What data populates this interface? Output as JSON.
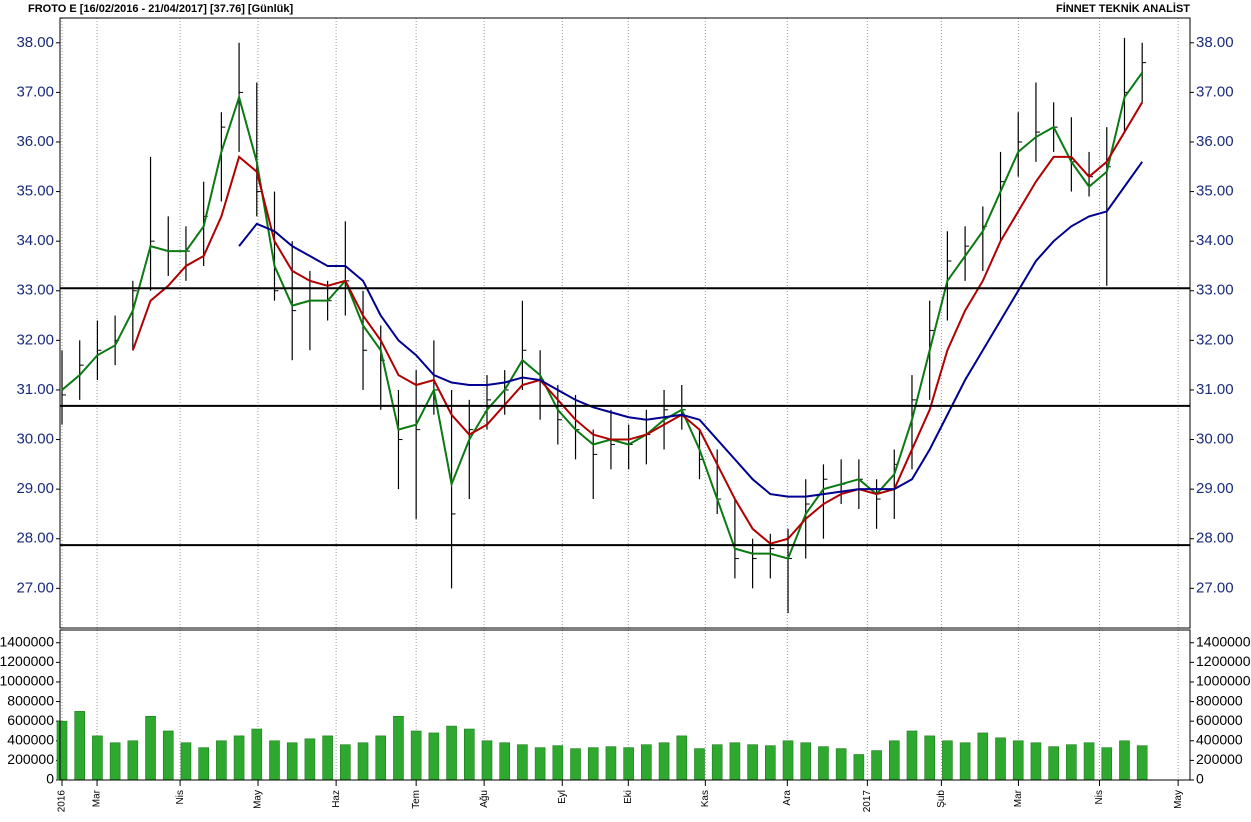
{
  "header": {
    "left": "FROTO E  [16/02/2016 - 21/04/2017]  [37.76]  [Günlük]",
    "right": "FİNNET TEKNİK ANALİST"
  },
  "chart_data": [
    {
      "type": "ohlc",
      "x": [
        0,
        1,
        2,
        3,
        4,
        5,
        6,
        7,
        8,
        9,
        10,
        11,
        12,
        13,
        14,
        15,
        16,
        17,
        18,
        19,
        20,
        21,
        22,
        23,
        24,
        25,
        26,
        27,
        28,
        29,
        30,
        31,
        32,
        33,
        34,
        35,
        36,
        37,
        38,
        39,
        40,
        41,
        42,
        43,
        44,
        45,
        46,
        47,
        48,
        49,
        50,
        51,
        52,
        53,
        54,
        55,
        56,
        57,
        58,
        59,
        60,
        61
      ],
      "high": [
        31.8,
        32.0,
        32.4,
        32.5,
        33.2,
        35.7,
        34.5,
        34.3,
        35.2,
        36.6,
        38.0,
        37.2,
        35.0,
        34.0,
        33.4,
        33.2,
        34.4,
        33.0,
        32.3,
        31.0,
        31.4,
        32.0,
        31.0,
        30.8,
        31.3,
        31.4,
        32.8,
        31.8,
        31.1,
        30.9,
        30.2,
        30.6,
        30.3,
        30.6,
        31.0,
        31.1,
        30.2,
        29.8,
        28.8,
        28.0,
        28.1,
        28.2,
        29.2,
        29.5,
        29.6,
        29.6,
        29.2,
        29.8,
        31.3,
        32.8,
        34.2,
        34.3,
        34.7,
        35.8,
        36.6,
        37.2,
        36.8,
        36.5,
        35.8,
        36.3,
        38.1,
        38.0
      ],
      "low": [
        30.3,
        30.8,
        31.2,
        31.5,
        31.8,
        33.0,
        33.3,
        33.2,
        33.5,
        34.8,
        35.8,
        34.5,
        32.8,
        31.6,
        31.8,
        32.4,
        32.5,
        31.0,
        30.6,
        29.0,
        28.4,
        30.5,
        27.0,
        28.8,
        30.2,
        30.5,
        31.0,
        30.4,
        29.9,
        29.6,
        28.8,
        29.4,
        29.4,
        29.5,
        29.8,
        30.2,
        29.2,
        28.5,
        27.2,
        27.0,
        27.2,
        26.5,
        27.6,
        28.0,
        28.7,
        28.6,
        28.2,
        28.4,
        29.4,
        30.8,
        32.4,
        33.2,
        33.4,
        34.0,
        35.3,
        35.6,
        35.8,
        35.0,
        34.9,
        33.1,
        36.2,
        36.8
      ],
      "close": [
        30.9,
        31.5,
        31.8,
        32.0,
        33.0,
        34.0,
        33.8,
        33.8,
        34.5,
        36.3,
        37.0,
        35.0,
        33.0,
        32.6,
        32.8,
        32.8,
        33.2,
        31.8,
        31.6,
        30.0,
        30.2,
        31.0,
        28.5,
        30.2,
        30.8,
        31.0,
        31.8,
        31.2,
        30.4,
        30.2,
        29.7,
        29.9,
        29.9,
        30.1,
        30.6,
        30.6,
        29.6,
        28.8,
        27.6,
        27.6,
        27.8,
        27.6,
        28.7,
        29.2,
        29.1,
        29.2,
        28.8,
        29.5,
        30.8,
        32.2,
        33.6,
        33.9,
        34.3,
        35.2,
        36.0,
        36.2,
        36.3,
        35.6,
        35.3,
        35.5,
        37.0,
        37.6
      ],
      "color": "#000000",
      "series": [
        {
          "color": "#0b7a12",
          "values": [
            31.0,
            31.3,
            31.7,
            31.9,
            32.6,
            33.9,
            33.8,
            33.8,
            34.3,
            35.8,
            36.9,
            35.6,
            33.5,
            32.7,
            32.8,
            32.8,
            33.2,
            32.3,
            31.8,
            30.2,
            30.3,
            31.0,
            29.1,
            30.0,
            30.6,
            31.0,
            31.6,
            31.3,
            30.6,
            30.2,
            29.9,
            30.0,
            29.9,
            30.1,
            30.4,
            30.6,
            29.8,
            28.8,
            27.8,
            27.7,
            27.7,
            27.6,
            28.5,
            29.0,
            29.1,
            29.2,
            28.9,
            29.3,
            30.4,
            31.8,
            33.2,
            33.7,
            34.2,
            35.0,
            35.8,
            36.1,
            36.3,
            35.6,
            35.1,
            35.4,
            36.9,
            37.4
          ]
        },
        {
          "color": "#b00000",
          "values": [
            null,
            null,
            null,
            null,
            31.8,
            32.8,
            33.1,
            33.5,
            33.7,
            34.5,
            35.7,
            35.4,
            34.0,
            33.4,
            33.2,
            33.1,
            33.2,
            32.5,
            32.0,
            31.3,
            31.1,
            31.2,
            30.5,
            30.1,
            30.3,
            30.7,
            31.1,
            31.2,
            30.8,
            30.4,
            30.1,
            30.0,
            30.0,
            30.1,
            30.3,
            30.5,
            30.2,
            29.5,
            28.8,
            28.2,
            27.9,
            28.0,
            28.4,
            28.7,
            28.9,
            29.0,
            28.9,
            29.0,
            29.8,
            30.6,
            31.8,
            32.6,
            33.2,
            34.0,
            34.6,
            35.2,
            35.7,
            35.7,
            35.3,
            35.6,
            36.2,
            36.8
          ]
        },
        {
          "color": "#000090",
          "values": [
            null,
            null,
            null,
            null,
            null,
            null,
            null,
            null,
            null,
            null,
            33.9,
            34.35,
            34.2,
            33.9,
            33.7,
            33.5,
            33.5,
            33.2,
            32.5,
            32.0,
            31.7,
            31.3,
            31.15,
            31.1,
            31.1,
            31.15,
            31.25,
            31.2,
            31.0,
            30.8,
            30.65,
            30.55,
            30.45,
            30.4,
            30.45,
            30.5,
            30.4,
            30.0,
            29.6,
            29.2,
            28.9,
            28.85,
            28.85,
            28.9,
            28.95,
            29.0,
            29.0,
            29.0,
            29.2,
            29.8,
            30.5,
            31.2,
            31.8,
            32.4,
            33.0,
            33.6,
            34.0,
            34.3,
            34.5,
            34.6,
            35.1,
            35.6
          ]
        }
      ],
      "hlines": [
        33.05,
        30.68,
        27.87
      ],
      "ylim": [
        26.2,
        38.5
      ],
      "yticks": [
        {
          "value": 27,
          "label": "27.00"
        },
        {
          "value": 28,
          "label": "28.00"
        },
        {
          "value": 29,
          "label": "29.00"
        },
        {
          "value": 30,
          "label": "30.00"
        },
        {
          "value": 31,
          "label": "31.00"
        },
        {
          "value": 32,
          "label": "32.00"
        },
        {
          "value": 33,
          "label": "33.00"
        },
        {
          "value": 34,
          "label": "34.00"
        },
        {
          "value": 35,
          "label": "35.00"
        },
        {
          "value": 36,
          "label": "36.00"
        },
        {
          "value": 37,
          "label": "37.00"
        },
        {
          "value": 38,
          "label": "38.00"
        }
      ],
      "grid": true
    },
    {
      "type": "bar",
      "values": [
        600000,
        700000,
        450000,
        380000,
        400000,
        650000,
        500000,
        380000,
        330000,
        400000,
        450000,
        520000,
        400000,
        380000,
        420000,
        450000,
        360000,
        380000,
        450000,
        650000,
        500000,
        480000,
        550000,
        520000,
        400000,
        380000,
        360000,
        330000,
        350000,
        320000,
        330000,
        340000,
        330000,
        360000,
        380000,
        450000,
        320000,
        360000,
        380000,
        360000,
        350000,
        400000,
        380000,
        340000,
        320000,
        260000,
        300000,
        400000,
        500000,
        450000,
        400000,
        380000,
        480000,
        430000,
        400000,
        380000,
        340000,
        360000,
        380000,
        330000,
        400000,
        350000
      ],
      "color": "#2ea82e",
      "ylim": [
        0,
        1530000
      ],
      "yticks": [
        0,
        200000,
        400000,
        600000,
        800000,
        1000000,
        1200000,
        1400000
      ],
      "xlim": [
        0,
        63.7
      ],
      "xticks": [
        {
          "value": 0,
          "label": "2016"
        },
        {
          "value": 1.98,
          "label": "Mar"
        },
        {
          "value": 6.67,
          "label": "Nis"
        },
        {
          "value": 11.07,
          "label": "May"
        },
        {
          "value": 15.48,
          "label": "Haz"
        },
        {
          "value": 20.0,
          "label": "Tem"
        },
        {
          "value": 23.84,
          "label": "Ağu"
        },
        {
          "value": 28.25,
          "label": "Eyl"
        },
        {
          "value": 31.98,
          "label": "Eki"
        },
        {
          "value": 36.33,
          "label": "Kas"
        },
        {
          "value": 40.96,
          "label": "Ara"
        },
        {
          "value": 45.48,
          "label": "2017"
        },
        {
          "value": 49.66,
          "label": "Şub"
        },
        {
          "value": 54.01,
          "label": "Mar"
        },
        {
          "value": 58.59,
          "label": "Nis"
        },
        {
          "value": 63.03,
          "label": "May"
        }
      ],
      "grid": true
    }
  ]
}
